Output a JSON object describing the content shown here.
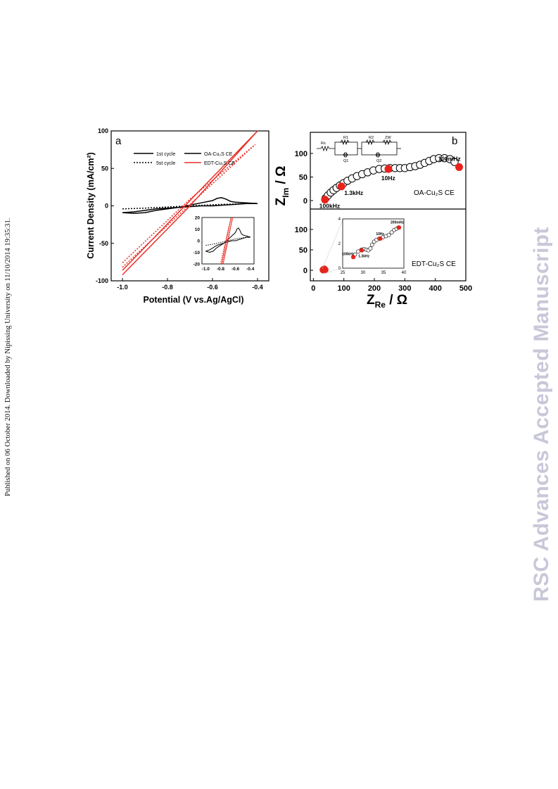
{
  "page": {
    "side_note": "Published on 06 October 2014. Downloaded by Nipissing University on 11/10/2014 19:35:31.",
    "watermark": "RSC Advances Accepted Manuscript"
  },
  "chart_data": [
    {
      "panel": "a",
      "type": "line",
      "xlabel": "Potential (V vs.Ag/AgCl)",
      "ylabel": "Current Density (mA/cm²)",
      "xlim": [
        -1.05,
        -0.35
      ],
      "ylim": [
        -100,
        100
      ],
      "xticks": [
        "-1.0",
        "-0.8",
        "-0.6",
        "-0.4"
      ],
      "yticks": [
        "-100",
        "-50",
        "0",
        "50",
        "100"
      ],
      "legend_style": [
        {
          "label": "1st cycle",
          "dash": "solid"
        },
        {
          "label": "5st cycle",
          "dash": "dotted"
        }
      ],
      "legend_series": [
        {
          "label": "OA-Cu₂S CE",
          "color": "#000000"
        },
        {
          "label": "EDT-Cu₂S CE",
          "color": "#e8312a"
        }
      ],
      "legend_placement": "top",
      "series": [
        {
          "name": "OA-Cu₂S CE",
          "cycle": "1st cycle",
          "color": "#000000",
          "dash": "solid",
          "x": [
            -1.0,
            -0.95,
            -0.9,
            -0.85,
            -0.8,
            -0.75,
            -0.7,
            -0.65,
            -0.6,
            -0.58,
            -0.56,
            -0.54,
            -0.52,
            -0.5,
            -0.45,
            -0.4,
            -0.45,
            -0.5,
            -0.55,
            -0.6,
            -0.65,
            -0.7,
            -0.75,
            -0.8,
            -0.85,
            -0.9,
            -0.95,
            -1.0
          ],
          "y": [
            -9,
            -10,
            -9,
            -6,
            -4,
            -2,
            1,
            4,
            7,
            10,
            11,
            9,
            6,
            5,
            4,
            3,
            3,
            2,
            1,
            0,
            0,
            -1,
            -2,
            -3,
            -4,
            -6,
            -8,
            -9
          ]
        },
        {
          "name": "OA-Cu₂S CE",
          "cycle": "5st cycle",
          "color": "#000000",
          "dash": "dotted",
          "x": [
            -1.0,
            -0.9,
            -0.8,
            -0.7,
            -0.6,
            -0.5,
            -0.4
          ],
          "y": [
            -4,
            -3,
            -1.5,
            0,
            1.5,
            2.5,
            3.5
          ]
        },
        {
          "name": "EDT-Cu₂S CE",
          "cycle": "1st cycle",
          "color": "#e8312a",
          "dash": "solid",
          "x": [
            -1.0,
            -0.7,
            -0.4,
            -0.7,
            -1.0
          ],
          "y": [
            -92,
            0,
            100,
            7,
            -86
          ]
        },
        {
          "name": "EDT-Cu₂S CE",
          "cycle": "5st cycle",
          "color": "#e8312a",
          "dash": "dotted",
          "x": [
            -1.0,
            -0.7,
            -0.41,
            -0.7,
            -1.0
          ],
          "y": [
            -82,
            2,
            82,
            9,
            -76
          ]
        }
      ],
      "inset": {
        "xlim": [
          -1.05,
          -0.35
        ],
        "ylim": [
          -20,
          20
        ],
        "xticks": [
          "-1.0",
          "-0.8",
          "-0.6",
          "-0.4"
        ],
        "yticks": [
          "20",
          "10",
          "0",
          "-10",
          "-20"
        ]
      }
    },
    {
      "panel": "b",
      "type": "scatter",
      "xlabel": "Z_Re / Ω",
      "ylabel": "Z_Im / Ω",
      "xlim": [
        -10,
        500
      ],
      "xticks": [
        "0",
        "100",
        "200",
        "300",
        "400",
        "500"
      ],
      "top_yticks": [
        "0",
        "50",
        "100"
      ],
      "bottom_yticks": [
        "0",
        "50",
        "100"
      ],
      "circuit_labels": [
        "Rs",
        "R1",
        "Q1",
        "R2",
        "ZW",
        "Q2"
      ],
      "series": [
        {
          "name": "OA-Cu₂S CE",
          "marker": "open-circle",
          "x": [
            40,
            48,
            57,
            66,
            76,
            87,
            99,
            112,
            127,
            143,
            160,
            178,
            197,
            216,
            234,
            251,
            268,
            284,
            300,
            317,
            334,
            350,
            365,
            380,
            395,
            412,
            430,
            448,
            463
          ],
          "y": [
            5,
            11,
            17,
            22,
            27,
            32,
            37,
            42,
            47,
            52,
            56,
            60,
            64,
            67,
            68,
            69,
            69,
            69,
            69,
            71,
            73,
            76,
            80,
            84,
            88,
            90,
            90,
            88,
            82
          ]
        },
        {
          "name": "OA-Cu₂S CE",
          "marker": "filled-red",
          "x": [
            38,
            92,
            246,
            478
          ],
          "y": [
            2,
            30,
            67,
            71
          ],
          "labels": [
            "100kHz",
            "1.3kHz",
            "10Hz",
            "100mHz"
          ]
        },
        {
          "name": "EDT-Cu₂S CE",
          "marker": "filled-red",
          "x": [
            32,
            34,
            36,
            38
          ],
          "y": [
            1,
            2,
            3,
            1
          ]
        }
      ],
      "inset": {
        "xlim": [
          25,
          40
        ],
        "ylim": [
          0,
          4
        ],
        "xticks": [
          "25",
          "30",
          "35",
          "40"
        ],
        "yticks": [
          "0",
          "2",
          "4"
        ],
        "open_points": {
          "x": [
            28,
            28.8,
            29.6,
            30.2,
            30.8,
            31.3,
            31.8,
            32.2,
            32.7,
            33.3,
            34,
            34.8,
            35.6,
            36.3,
            37,
            37.6,
            38.2,
            38.7
          ],
          "y": [
            1.1,
            1.35,
            1.5,
            1.55,
            1.5,
            1.45,
            1.6,
            1.9,
            2.15,
            2.3,
            2.4,
            2.5,
            2.6,
            2.7,
            2.9,
            3.1,
            3.2,
            3.3
          ]
        },
        "labeled_points": {
          "x": [
            27.6,
            29.7,
            34.2,
            38.8
          ],
          "y": [
            0.9,
            1.45,
            2.4,
            3.3
          ],
          "labels": [
            "100kHz",
            "1.3kHz",
            "10Hz",
            "200mHz"
          ]
        }
      },
      "top_panel_label": "OA-Cu₂S CE",
      "bottom_panel_label": "EDT-Cu₂S CE"
    }
  ]
}
